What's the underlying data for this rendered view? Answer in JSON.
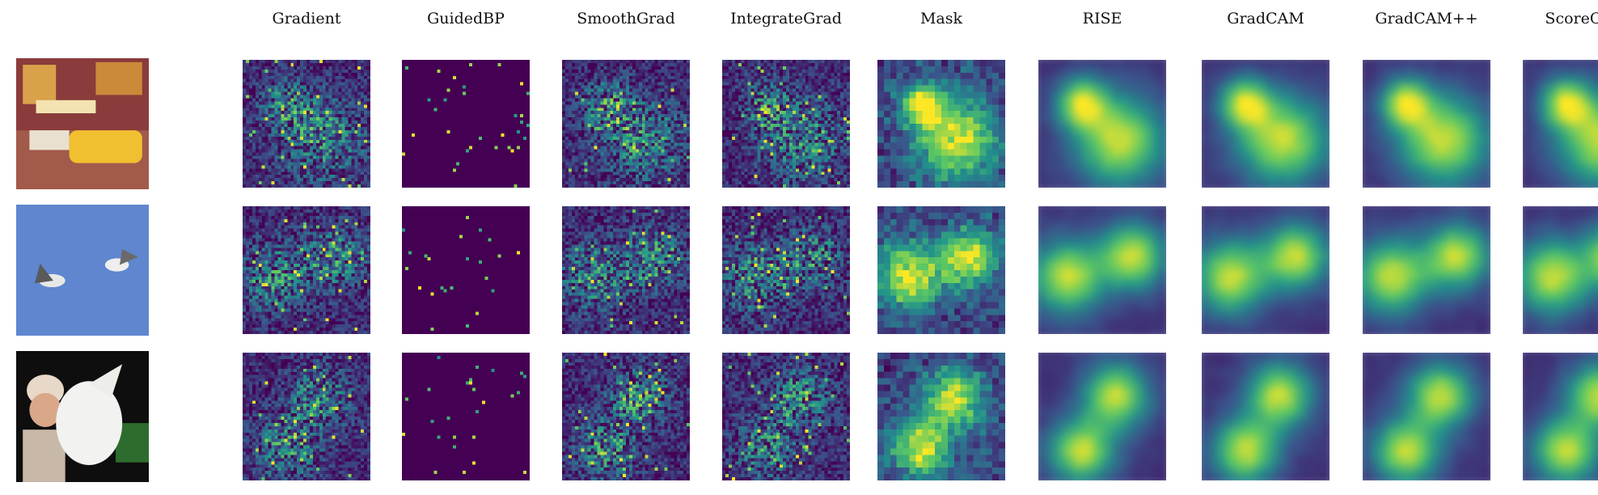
{
  "figure": {
    "columns": [
      {
        "key": "gradient",
        "label": "Gradient",
        "style": "noise"
      },
      {
        "key": "guidedbp",
        "label": "GuidedBP",
        "style": "sparse"
      },
      {
        "key": "smoothgrad",
        "label": "SmoothGrad",
        "style": "noise"
      },
      {
        "key": "integrategrad",
        "label": "IntegrateGrad",
        "style": "noise"
      },
      {
        "key": "mask",
        "label": "Mask",
        "style": "blocky"
      },
      {
        "key": "rise",
        "label": "RISE",
        "style": "smooth"
      },
      {
        "key": "gradcam",
        "label": "GradCAM",
        "style": "smooth"
      },
      {
        "key": "gradcampp",
        "label": "GradCAM++",
        "style": "smooth"
      },
      {
        "key": "scorecam",
        "label": "ScoreCAM",
        "style": "smooth"
      }
    ],
    "rows": [
      {
        "key": "taxi",
        "image": "city-street-taxi-photo"
      },
      {
        "key": "birds",
        "image": "two-birds-in-sky-photo"
      },
      {
        "key": "dog",
        "image": "woman-with-white-dog-photo"
      }
    ],
    "colormap": [
      "#440154",
      "#3b528b",
      "#21918c",
      "#5ec962",
      "#fde725"
    ]
  }
}
